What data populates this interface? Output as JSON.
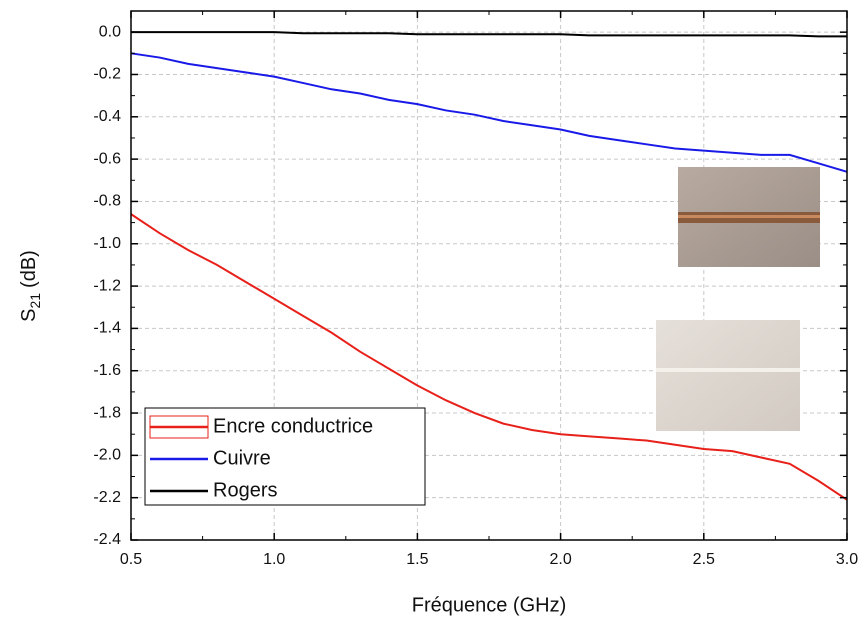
{
  "chart_data": {
    "type": "line",
    "x_label": "Fréquence (GHz)",
    "y_label": {
      "main": "S",
      "sub": "21",
      "unit": "(dB)"
    },
    "x": [
      0.5,
      0.6,
      0.7,
      0.8,
      0.9,
      1.0,
      1.1,
      1.2,
      1.3,
      1.4,
      1.5,
      1.6,
      1.7,
      1.8,
      1.9,
      2.0,
      2.1,
      2.2,
      2.3,
      2.4,
      2.5,
      2.6,
      2.7,
      2.8,
      2.9,
      3.0
    ],
    "series": [
      {
        "name": "Encre conductrice",
        "color": "#e8201a",
        "values": [
          -0.86,
          -0.95,
          -1.03,
          -1.1,
          -1.18,
          -1.26,
          -1.34,
          -1.42,
          -1.51,
          -1.59,
          -1.67,
          -1.74,
          -1.8,
          -1.85,
          -1.88,
          -1.9,
          -1.91,
          -1.92,
          -1.93,
          -1.95,
          -1.97,
          -1.98,
          -2.01,
          -2.04,
          -2.12,
          -2.21
        ]
      },
      {
        "name": "Cuivre",
        "color": "#1a1ae8",
        "values": [
          -0.1,
          -0.12,
          -0.15,
          -0.17,
          -0.19,
          -0.21,
          -0.24,
          -0.27,
          -0.29,
          -0.32,
          -0.34,
          -0.37,
          -0.39,
          -0.42,
          -0.44,
          -0.46,
          -0.49,
          -0.51,
          -0.53,
          -0.55,
          -0.56,
          -0.57,
          -0.58,
          -0.58,
          -0.62,
          -0.66
        ]
      },
      {
        "name": "Rogers",
        "color": "#000000",
        "values": [
          0,
          0,
          0,
          0,
          0,
          0,
          -0.005,
          -0.005,
          -0.005,
          -0.005,
          -0.01,
          -0.01,
          -0.01,
          -0.01,
          -0.01,
          -0.01,
          -0.015,
          -0.015,
          -0.015,
          -0.015,
          -0.015,
          -0.015,
          -0.015,
          -0.015,
          -0.02,
          -0.02
        ]
      }
    ],
    "xlim": [
      0.5,
      3.0
    ],
    "ylim": [
      -2.4,
      0.1
    ],
    "xticks": [
      0.5,
      {
        "value": 1.0,
        "label": "1.0"
      },
      1.5,
      {
        "value": 2.0,
        "label": "2.0"
      },
      2.5,
      {
        "value": 3.0,
        "label": "3.0"
      }
    ],
    "yticks": [
      {
        "value": 0,
        "label": "0.0"
      },
      -0.2,
      -0.4,
      -0.6,
      -0.8,
      {
        "value": -1.0,
        "label": "-1.0"
      },
      -1.2,
      -1.4,
      -1.6,
      -1.8,
      {
        "value": -2.0,
        "label": "-2.0"
      },
      -2.2,
      -2.4
    ],
    "grid": true
  }
}
